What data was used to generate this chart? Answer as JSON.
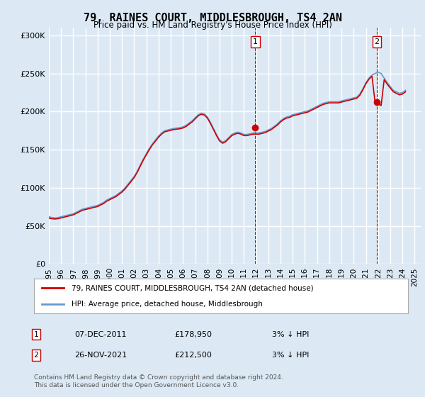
{
  "title": "79, RAINES COURT, MIDDLESBROUGH, TS4 2AN",
  "subtitle": "Price paid vs. HM Land Registry's House Price Index (HPI)",
  "ylabel_ticks": [
    "£0",
    "£50K",
    "£100K",
    "£150K",
    "£200K",
    "£250K",
    "£300K"
  ],
  "ytick_vals": [
    0,
    50000,
    100000,
    150000,
    200000,
    250000,
    300000
  ],
  "ylim": [
    0,
    310000
  ],
  "xlim_start": 1995.0,
  "xlim_end": 2025.5,
  "background_color": "#dce9f5",
  "plot_bg_color": "#dce9f5",
  "grid_color": "#ffffff",
  "red_line_color": "#cc0000",
  "blue_line_color": "#6699cc",
  "marker1_x": 2011.92,
  "marker1_y": 178950,
  "marker2_x": 2021.9,
  "marker2_y": 212500,
  "marker1_label": "1",
  "marker2_label": "2",
  "legend_line1": "79, RAINES COURT, MIDDLESBROUGH, TS4 2AN (detached house)",
  "legend_line2": "HPI: Average price, detached house, Middlesbrough",
  "table_row1": [
    "1",
    "07-DEC-2011",
    "£178,950",
    "3% ↓ HPI"
  ],
  "table_row2": [
    "2",
    "26-NOV-2021",
    "£212,500",
    "3% ↓ HPI"
  ],
  "footnote": "Contains HM Land Registry data © Crown copyright and database right 2024.\nThis data is licensed under the Open Government Licence v3.0.",
  "hpi_data_x": [
    1995.0,
    1995.25,
    1995.5,
    1995.75,
    1996.0,
    1996.25,
    1996.5,
    1996.75,
    1997.0,
    1997.25,
    1997.5,
    1997.75,
    1998.0,
    1998.25,
    1998.5,
    1998.75,
    1999.0,
    1999.25,
    1999.5,
    1999.75,
    2000.0,
    2000.25,
    2000.5,
    2000.75,
    2001.0,
    2001.25,
    2001.5,
    2001.75,
    2002.0,
    2002.25,
    2002.5,
    2002.75,
    2003.0,
    2003.25,
    2003.5,
    2003.75,
    2004.0,
    2004.25,
    2004.5,
    2004.75,
    2005.0,
    2005.25,
    2005.5,
    2005.75,
    2006.0,
    2006.25,
    2006.5,
    2006.75,
    2007.0,
    2007.25,
    2007.5,
    2007.75,
    2008.0,
    2008.25,
    2008.5,
    2008.75,
    2009.0,
    2009.25,
    2009.5,
    2009.75,
    2010.0,
    2010.25,
    2010.5,
    2010.75,
    2011.0,
    2011.25,
    2011.5,
    2011.75,
    2012.0,
    2012.25,
    2012.5,
    2012.75,
    2013.0,
    2013.25,
    2013.5,
    2013.75,
    2014.0,
    2014.25,
    2014.5,
    2014.75,
    2015.0,
    2015.25,
    2015.5,
    2015.75,
    2016.0,
    2016.25,
    2016.5,
    2016.75,
    2017.0,
    2017.25,
    2017.5,
    2017.75,
    2018.0,
    2018.25,
    2018.5,
    2018.75,
    2019.0,
    2019.25,
    2019.5,
    2019.75,
    2020.0,
    2020.25,
    2020.5,
    2020.75,
    2021.0,
    2021.25,
    2021.5,
    2021.75,
    2022.0,
    2022.25,
    2022.5,
    2022.75,
    2023.0,
    2023.25,
    2023.5,
    2023.75,
    2024.0,
    2024.25
  ],
  "hpi_data_y": [
    62000,
    61000,
    60500,
    61000,
    62000,
    63000,
    64000,
    65000,
    66000,
    68000,
    70000,
    72000,
    73000,
    74000,
    75000,
    76000,
    77000,
    79000,
    81000,
    84000,
    86000,
    88000,
    90000,
    93000,
    96000,
    100000,
    105000,
    110000,
    115000,
    122000,
    130000,
    138000,
    145000,
    152000,
    158000,
    163000,
    168000,
    172000,
    175000,
    176000,
    177000,
    178000,
    178500,
    179000,
    180000,
    182000,
    185000,
    188000,
    192000,
    196000,
    198000,
    197000,
    193000,
    186000,
    178000,
    170000,
    163000,
    160000,
    162000,
    166000,
    170000,
    172000,
    173000,
    172000,
    170000,
    170000,
    171000,
    172000,
    172000,
    172000,
    173000,
    174000,
    176000,
    178000,
    181000,
    184000,
    188000,
    191000,
    193000,
    194000,
    196000,
    197000,
    198000,
    199000,
    200000,
    201000,
    203000,
    205000,
    207000,
    209000,
    211000,
    212000,
    213000,
    213000,
    213000,
    213000,
    214000,
    215000,
    216000,
    217000,
    218000,
    219000,
    223000,
    230000,
    238000,
    244000,
    248000,
    250000,
    252000,
    250000,
    244000,
    238000,
    233000,
    228000,
    226000,
    224000,
    225000,
    228000
  ],
  "red_data_x": [
    1995.0,
    1995.25,
    1995.5,
    1995.75,
    1996.0,
    1996.25,
    1996.5,
    1996.75,
    1997.0,
    1997.25,
    1997.5,
    1997.75,
    1998.0,
    1998.25,
    1998.5,
    1998.75,
    1999.0,
    1999.25,
    1999.5,
    1999.75,
    2000.0,
    2000.25,
    2000.5,
    2000.75,
    2001.0,
    2001.25,
    2001.5,
    2001.75,
    2002.0,
    2002.25,
    2002.5,
    2002.75,
    2003.0,
    2003.25,
    2003.5,
    2003.75,
    2004.0,
    2004.25,
    2004.5,
    2004.75,
    2005.0,
    2005.25,
    2005.5,
    2005.75,
    2006.0,
    2006.25,
    2006.5,
    2006.75,
    2007.0,
    2007.25,
    2007.5,
    2007.75,
    2008.0,
    2008.25,
    2008.5,
    2008.75,
    2009.0,
    2009.25,
    2009.5,
    2009.75,
    2010.0,
    2010.25,
    2010.5,
    2010.75,
    2011.0,
    2011.25,
    2011.5,
    2011.75,
    2012.0,
    2012.25,
    2012.5,
    2012.75,
    2013.0,
    2013.25,
    2013.5,
    2013.75,
    2014.0,
    2014.25,
    2014.5,
    2014.75,
    2015.0,
    2015.25,
    2015.5,
    2015.75,
    2016.0,
    2016.25,
    2016.5,
    2016.75,
    2017.0,
    2017.25,
    2017.5,
    2017.75,
    2018.0,
    2018.25,
    2018.5,
    2018.75,
    2019.0,
    2019.25,
    2019.5,
    2019.75,
    2020.0,
    2020.25,
    2020.5,
    2020.75,
    2021.0,
    2021.25,
    2021.5,
    2021.75,
    2022.0,
    2022.25,
    2022.5,
    2022.75,
    2023.0,
    2023.25,
    2023.5,
    2023.75,
    2024.0,
    2024.25
  ],
  "red_data_y": [
    60000,
    59500,
    59000,
    59500,
    60500,
    61500,
    62500,
    63500,
    64500,
    66500,
    68500,
    70500,
    71500,
    72500,
    73500,
    74500,
    75500,
    77500,
    79500,
    82500,
    84500,
    86500,
    88500,
    91500,
    94500,
    98500,
    103500,
    108500,
    113500,
    120500,
    128500,
    136500,
    143500,
    150500,
    156500,
    161500,
    166500,
    170500,
    173500,
    174500,
    175500,
    176500,
    177000,
    177500,
    178500,
    180500,
    183500,
    186500,
    190500,
    194500,
    196500,
    195500,
    191500,
    184500,
    176500,
    168500,
    161500,
    158500,
    160500,
    164500,
    168500,
    170500,
    171500,
    170500,
    168500,
    168500,
    169500,
    170500,
    170500,
    170500,
    171500,
    172500,
    174500,
    176500,
    179500,
    182500,
    186500,
    189500,
    191500,
    192500,
    194500,
    195500,
    196500,
    197500,
    198500,
    199500,
    201500,
    203500,
    205500,
    207500,
    209500,
    210500,
    211500,
    211500,
    211500,
    211500,
    212500,
    213500,
    214500,
    215500,
    216500,
    217500,
    221500,
    228500,
    236500,
    242500,
    246500,
    212500,
    210000,
    208000,
    242000,
    236000,
    231000,
    226000,
    224000,
    222000,
    223000,
    226000
  ]
}
